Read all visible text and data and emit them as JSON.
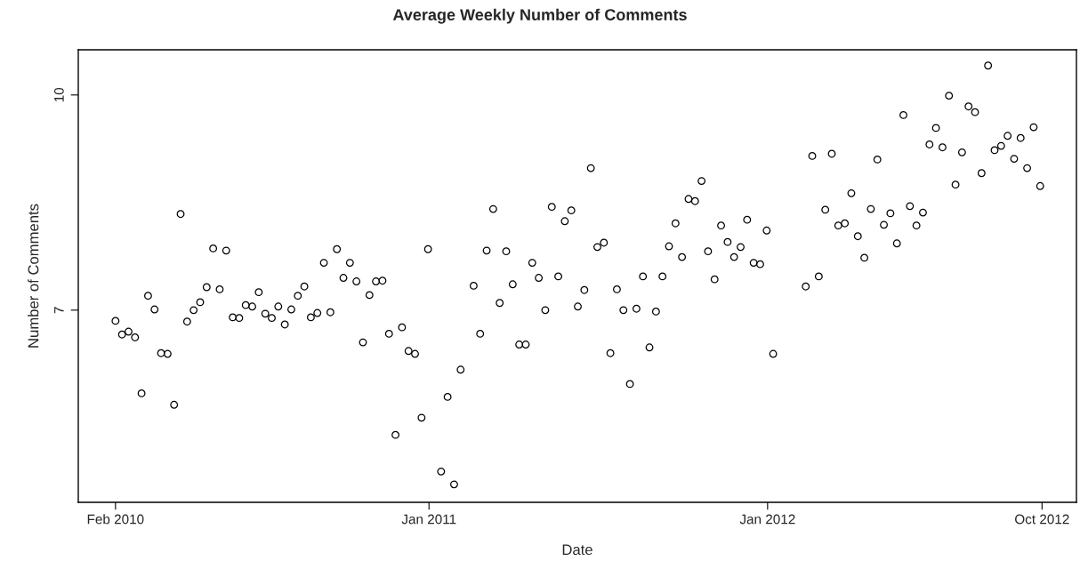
{
  "chart_data": {
    "type": "scatter",
    "title": "Average Weekly Number of Comments",
    "xlabel": "Date",
    "ylabel": "Number of Comments",
    "marker": "circle",
    "grid": false,
    "legend": false,
    "xlim": [
      "2009-12-23",
      "2012-11-30"
    ],
    "ylim": [
      4.32,
      10.63
    ],
    "xticks": [
      {
        "value": "2010-02-01",
        "label": "Feb 2010"
      },
      {
        "value": "2011-01-04",
        "label": "Jan 2011"
      },
      {
        "value": "2012-01-03",
        "label": "Jan 2012"
      },
      {
        "value": "2012-10-24",
        "label": "Oct 2012"
      }
    ],
    "yticks": [
      7,
      10
    ],
    "series": [
      {
        "color": "#000000",
        "x": [
          "2010-02-01",
          "2010-02-08",
          "2010-02-15",
          "2010-02-22",
          "2010-03-01",
          "2010-03-08",
          "2010-03-15",
          "2010-03-22",
          "2010-03-29",
          "2010-04-05",
          "2010-04-12",
          "2010-04-19",
          "2010-04-26",
          "2010-05-03",
          "2010-05-10",
          "2010-05-17",
          "2010-05-24",
          "2010-05-31",
          "2010-06-07",
          "2010-06-14",
          "2010-06-21",
          "2010-06-28",
          "2010-07-05",
          "2010-07-12",
          "2010-07-19",
          "2010-07-26",
          "2010-08-02",
          "2010-08-09",
          "2010-08-16",
          "2010-08-23",
          "2010-08-30",
          "2010-09-06",
          "2010-09-13",
          "2010-09-20",
          "2010-09-27",
          "2010-10-04",
          "2010-10-11",
          "2010-10-18",
          "2010-10-25",
          "2010-11-01",
          "2010-11-08",
          "2010-11-15",
          "2010-11-22",
          "2010-11-29",
          "2010-12-06",
          "2010-12-13",
          "2010-12-20",
          "2010-12-27",
          "2011-01-03",
          "2011-01-17",
          "2011-01-24",
          "2011-01-31",
          "2011-02-07",
          "2011-02-21",
          "2011-02-28",
          "2011-03-07",
          "2011-03-14",
          "2011-03-21",
          "2011-03-28",
          "2011-04-04",
          "2011-04-11",
          "2011-04-18",
          "2011-04-25",
          "2011-05-02",
          "2011-05-09",
          "2011-05-16",
          "2011-05-23",
          "2011-05-30",
          "2011-06-06",
          "2011-06-13",
          "2011-06-20",
          "2011-06-27",
          "2011-07-04",
          "2011-07-11",
          "2011-07-18",
          "2011-07-25",
          "2011-08-01",
          "2011-08-08",
          "2011-08-15",
          "2011-08-22",
          "2011-08-29",
          "2011-09-05",
          "2011-09-12",
          "2011-09-19",
          "2011-09-26",
          "2011-10-03",
          "2011-10-10",
          "2011-10-17",
          "2011-10-24",
          "2011-10-31",
          "2011-11-07",
          "2011-11-14",
          "2011-11-21",
          "2011-11-28",
          "2011-12-05",
          "2011-12-12",
          "2011-12-19",
          "2011-12-26",
          "2012-01-02",
          "2012-01-09",
          "2012-02-13",
          "2012-02-20",
          "2012-02-27",
          "2012-03-05",
          "2012-03-12",
          "2012-03-19",
          "2012-03-26",
          "2012-04-02",
          "2012-04-09",
          "2012-04-16",
          "2012-04-23",
          "2012-04-30",
          "2012-05-07",
          "2012-05-14",
          "2012-05-21",
          "2012-05-28",
          "2012-06-04",
          "2012-06-11",
          "2012-06-18",
          "2012-06-25",
          "2012-07-02",
          "2012-07-09",
          "2012-07-16",
          "2012-07-23",
          "2012-07-30",
          "2012-08-06",
          "2012-08-13",
          "2012-08-20",
          "2012-08-27",
          "2012-09-03",
          "2012-09-10",
          "2012-09-17",
          "2012-09-24",
          "2012-10-01",
          "2012-10-08",
          "2012-10-15",
          "2012-10-22"
        ],
        "values": [
          6.85,
          6.66,
          6.7,
          6.62,
          5.84,
          7.2,
          7.01,
          6.4,
          6.39,
          5.68,
          8.34,
          6.84,
          7.0,
          7.11,
          7.32,
          7.86,
          7.29,
          7.83,
          6.9,
          6.89,
          7.07,
          7.05,
          7.25,
          6.95,
          6.89,
          7.05,
          6.8,
          7.01,
          7.2,
          7.33,
          6.9,
          6.96,
          7.66,
          6.97,
          7.85,
          7.45,
          7.66,
          7.4,
          6.55,
          7.21,
          7.4,
          7.41,
          6.67,
          5.26,
          6.76,
          6.43,
          6.39,
          5.5,
          7.85,
          4.75,
          5.79,
          4.57,
          6.17,
          7.34,
          6.67,
          7.83,
          8.41,
          7.1,
          7.82,
          7.36,
          6.52,
          6.52,
          7.66,
          7.45,
          7.0,
          8.44,
          7.47,
          8.24,
          8.39,
          7.05,
          7.28,
          8.98,
          7.88,
          7.94,
          6.4,
          7.29,
          7.0,
          5.97,
          7.02,
          7.47,
          6.48,
          6.98,
          7.47,
          7.89,
          8.21,
          7.74,
          8.55,
          8.52,
          8.8,
          7.82,
          7.43,
          8.18,
          7.95,
          7.74,
          7.88,
          8.26,
          7.66,
          7.64,
          8.11,
          6.39,
          7.33,
          9.15,
          7.47,
          8.4,
          9.18,
          8.18,
          8.21,
          8.63,
          8.03,
          7.73,
          8.41,
          9.1,
          8.19,
          8.35,
          7.93,
          9.72,
          8.45,
          8.18,
          8.36,
          9.31,
          9.54,
          9.27,
          9.99,
          8.75,
          9.2,
          9.84,
          9.76,
          8.91,
          10.41,
          9.23,
          9.29,
          9.43,
          9.11,
          9.4,
          8.98,
          9.55,
          8.73
        ]
      }
    ]
  }
}
